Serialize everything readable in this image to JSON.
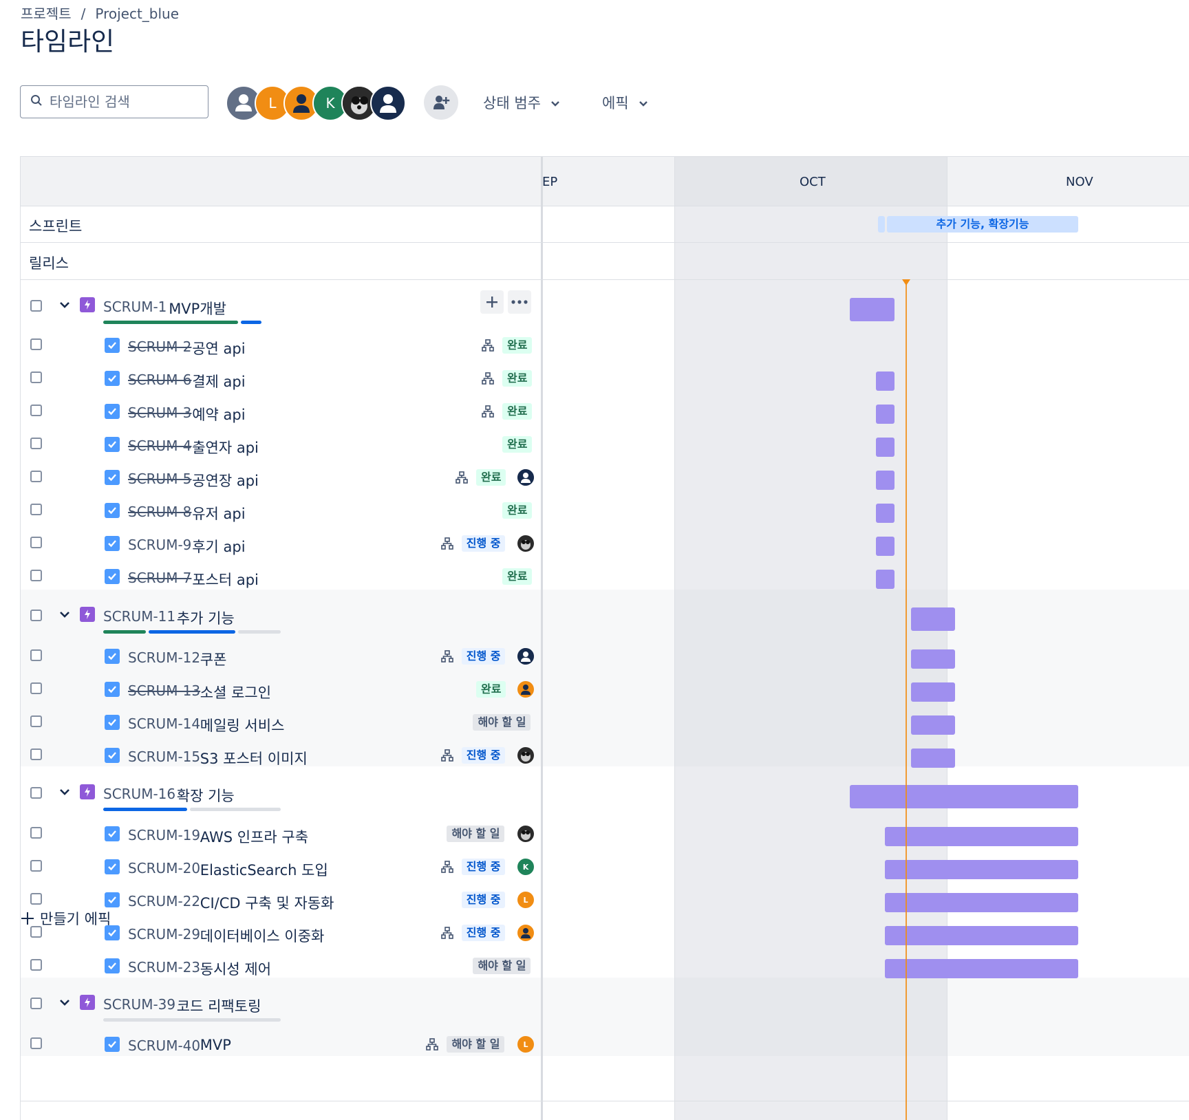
{
  "breadcrumb": {
    "project": "프로젝트",
    "separator": "/",
    "current": "Project_blue"
  },
  "page_title": "타임라인",
  "search": {
    "placeholder": "타임라인 검색"
  },
  "avatars": [
    {
      "name": "avatar-default",
      "initial": "",
      "color": "#626f86"
    },
    {
      "name": "avatar-l",
      "initial": "L",
      "color": "#f18d13"
    },
    {
      "name": "avatar-person-orange",
      "initial": "",
      "color": "#f18d13"
    },
    {
      "name": "avatar-k",
      "initial": "K",
      "color": "#1f845a"
    },
    {
      "name": "avatar-cat",
      "initial": "",
      "color": "#2c2c2c"
    },
    {
      "name": "avatar-navy",
      "initial": "",
      "color": "#172b4d"
    }
  ],
  "filters": {
    "status_category": "상태 범주",
    "epic": "에픽"
  },
  "timeline": {
    "months": [
      "EP",
      "OCT",
      "NOV"
    ],
    "sprint_label": "스프린트",
    "release_label": "릴리스",
    "sprint_name": "추가 기능, 확장기능"
  },
  "status_labels": {
    "done": "완료",
    "in_progress": "진행 중",
    "todo": "해야 할 일"
  },
  "epics": [
    {
      "key": "SCRUM-1",
      "title": "MVP개발"
    },
    {
      "key": "SCRUM-11",
      "title": "추가 기능"
    },
    {
      "key": "SCRUM-16",
      "title": "확장 기능"
    },
    {
      "key": "SCRUM-39",
      "title": "코드 리팩토링"
    }
  ],
  "issues": [
    {
      "key": "SCRUM-2",
      "title": "공연 api",
      "status": "완료"
    },
    {
      "key": "SCRUM-6",
      "title": "결제 api",
      "status": "완료"
    },
    {
      "key": "SCRUM-3",
      "title": "예약 api",
      "status": "완료"
    },
    {
      "key": "SCRUM-4",
      "title": "출연자 api",
      "status": "완료"
    },
    {
      "key": "SCRUM-5",
      "title": "공연장 api",
      "status": "완료"
    },
    {
      "key": "SCRUM-8",
      "title": "유저 api",
      "status": "완료"
    },
    {
      "key": "SCRUM-9",
      "title": "후기 api",
      "status": "진행 중"
    },
    {
      "key": "SCRUM-7",
      "title": "포스터 api",
      "status": "완료"
    },
    {
      "key": "SCRUM-12",
      "title": "쿠폰",
      "status": "진행 중"
    },
    {
      "key": "SCRUM-13",
      "title": "소셜 로그인",
      "status": "완료"
    },
    {
      "key": "SCRUM-14",
      "title": "메일링 서비스",
      "status": "해야 할 일"
    },
    {
      "key": "SCRUM-15",
      "title": "S3 포스터 이미지",
      "status": "진행 중"
    },
    {
      "key": "SCRUM-19",
      "title": "AWS 인프라 구축",
      "status": "해야 할 일"
    },
    {
      "key": "SCRUM-20",
      "title": "ElasticSearch 도입",
      "status": "진행 중"
    },
    {
      "key": "SCRUM-22",
      "title": "CI/CD 구축 및 자동화",
      "status": "진행 중"
    },
    {
      "key": "SCRUM-29",
      "title": "데이터베이스 이중화",
      "status": "진행 중"
    },
    {
      "key": "SCRUM-23",
      "title": "동시성 제어",
      "status": "해야 할 일"
    },
    {
      "key": "SCRUM-40",
      "title": "MVP",
      "status": "해야 할 일"
    }
  ],
  "mini_avatar_initials": {
    "l": "L",
    "k": "K"
  },
  "create_epic": "만들기 에픽",
  "colors": {
    "bar": "#9f8fef",
    "today_line": "#f18d13",
    "epic_icon": "#8f59d8",
    "task_icon": "#4c9aff"
  }
}
